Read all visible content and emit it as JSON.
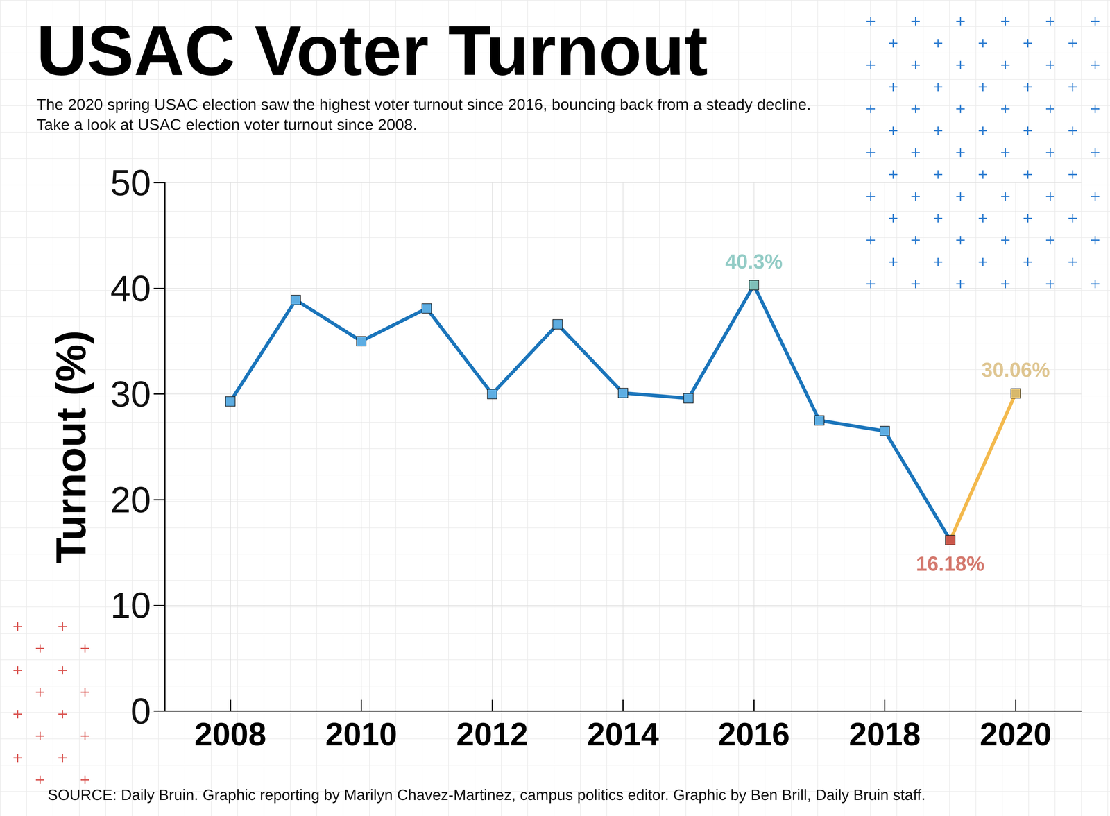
{
  "chart_data": {
    "type": "line",
    "title": "USAC Voter Turnout",
    "subtitle": "The 2020 spring USAC election saw the highest voter turnout since 2016, bouncing back from a steady decline. Take a look at USAC election voter turnout since 2008.",
    "source": "SOURCE: Daily Bruin. Graphic reporting by Marilyn Chavez-Martinez, campus politics editor. Graphic by Ben Brill, Daily Bruin staff.",
    "y_label": "Turnout (%)",
    "x": [
      2008,
      2009,
      2010,
      2011,
      2012,
      2013,
      2014,
      2015,
      2016,
      2017,
      2018,
      2019,
      2020
    ],
    "series": [
      {
        "values": [
          29.3,
          38.9,
          35.0,
          38.1,
          30.0,
          36.6,
          30.1,
          29.6,
          40.3,
          27.5,
          26.5,
          16.18,
          null
        ],
        "color": "#1b75bb",
        "marker": "square",
        "colors": [
          "#5dade2",
          "#5dade2",
          "#5dade2",
          "#5dade2",
          "#5dade2",
          "#5dade2",
          "#5dade2",
          "#5dade2",
          "#7fbfb8",
          "#5dade2",
          "#5dade2",
          "#c9574a",
          null
        ]
      },
      {
        "values": [
          null,
          null,
          null,
          null,
          null,
          null,
          null,
          null,
          null,
          null,
          null,
          16.18,
          30.06
        ],
        "color": "#f3b94d",
        "marker": "square",
        "colors": [
          null,
          null,
          null,
          null,
          null,
          null,
          null,
          null,
          null,
          null,
          null,
          "#c9574a",
          "#d8b96c"
        ]
      }
    ],
    "xlim": [
      2007,
      2021
    ],
    "xticks": [
      2008,
      2010,
      2012,
      2014,
      2016,
      2018,
      2020
    ],
    "ylim": [
      0,
      50
    ],
    "yticks": [
      0,
      10,
      20,
      30,
      40,
      50
    ],
    "grid": true,
    "annotations": [
      {
        "x": 2016,
        "y": 40.3,
        "text": "40.3%",
        "color": "#78bfb8",
        "position": "top"
      },
      {
        "x": 2019,
        "y": 16.18,
        "text": "16.18%",
        "color": "#c9574a",
        "position": "bottom"
      },
      {
        "x": 2020,
        "y": 30.06,
        "text": "30.06%",
        "color": "#d7b877",
        "position": "top"
      }
    ]
  }
}
